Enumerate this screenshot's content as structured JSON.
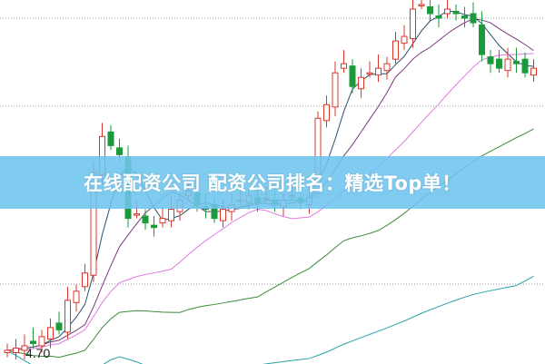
{
  "banner": {
    "title": "在线配资公司 配资公司排名：精选Top单！"
  },
  "chart_data": {
    "type": "candlestick",
    "price_label": "4.70",
    "grid": "dotted horizontal",
    "colors": {
      "up": "#d9372b",
      "down": "#1a9a3a",
      "ma5": "#2a4f6e",
      "ma10": "#7a3a7a",
      "ma20": "#e07be0",
      "ma30": "#3c8a3c",
      "ma60": "#2aa0a8",
      "banner": "#6ec4ee"
    },
    "ylim": [
      4.66,
      6.26
    ],
    "closes": [
      4.72,
      4.73,
      4.74,
      4.75,
      4.78,
      4.82,
      4.81,
      4.94,
      4.98,
      5.06,
      5.5,
      5.66,
      5.62,
      5.58,
      5.3,
      5.32,
      5.28,
      5.26,
      5.3,
      5.34,
      5.38,
      5.42,
      5.36,
      5.34,
      5.3,
      5.34,
      5.36,
      5.38,
      5.4,
      5.37,
      5.39,
      5.36,
      5.38,
      5.4,
      5.37,
      5.39,
      5.74,
      5.8,
      5.94,
      5.98,
      5.88,
      5.92,
      5.94,
      5.96,
      5.98,
      6.08,
      6.1,
      6.22,
      6.24,
      6.2,
      6.18,
      6.22,
      6.2,
      6.18,
      6.16,
      6.02,
      5.98,
      5.96,
      6.0,
      5.98,
      5.94,
      5.96
    ]
  }
}
